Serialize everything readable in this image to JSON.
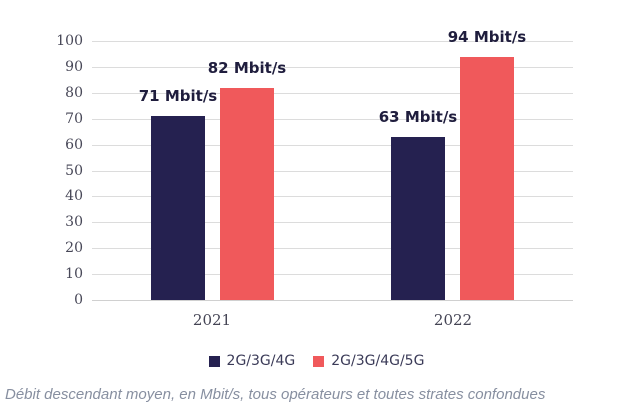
{
  "chart_data": {
    "type": "bar",
    "title": "",
    "xlabel": "",
    "ylabel": "",
    "categories": [
      "2021",
      "2022"
    ],
    "series": [
      {
        "name": "2G/3G/4G",
        "color": "#252150",
        "values": [
          71,
          63
        ],
        "value_labels": [
          "71 Mbit/s",
          "63 Mbit/s"
        ]
      },
      {
        "name": "2G/3G/4G/5G",
        "color": "#F0595B",
        "values": [
          82,
          94
        ],
        "value_labels": [
          "82 Mbit/s",
          "94 Mbit/s"
        ]
      }
    ],
    "ylim": [
      0,
      100
    ],
    "ytick_step": 10,
    "grid": true,
    "legend_position": "bottom",
    "caption": "Débit descendant moyen, en Mbit/s, tous opérateurs et toutes strates confondues"
  },
  "colors": {
    "background": "#FFFFFF",
    "bar_navy": "#252150",
    "bar_red": "#F0595B",
    "gridline": "#DCDCDC",
    "axis_line": "#D0D0D0",
    "tick_label": "#474757",
    "value_label": "#1F1D3D",
    "category_label": "#454555",
    "legend_label": "#3B3B58",
    "caption_text": "#878FA0"
  }
}
